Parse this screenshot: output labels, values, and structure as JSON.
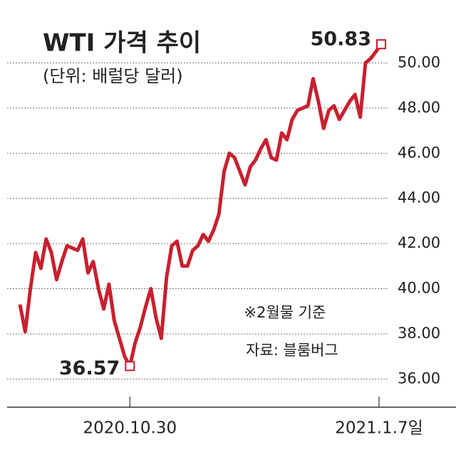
{
  "chart_data": {
    "type": "line",
    "title": "WTI 가격 추이",
    "subtitle": "(단위: 배럴당 달러)",
    "annotations": [
      "※2월물 기준",
      "자료: 블룸버그"
    ],
    "categories": [
      null,
      null,
      null,
      null,
      null,
      null,
      null,
      null,
      null,
      null,
      null,
      null,
      null,
      null,
      null,
      null,
      null,
      null,
      null,
      null,
      null,
      "2020.10.30",
      null,
      null,
      null,
      null,
      null,
      null,
      null,
      null,
      null,
      null,
      null,
      null,
      null,
      null,
      null,
      null,
      null,
      null,
      null,
      null,
      null,
      null,
      null,
      null,
      null,
      null,
      null,
      null,
      null,
      null,
      null,
      null,
      null,
      null,
      null,
      null,
      null,
      null,
      null,
      null,
      null,
      null,
      null,
      null,
      null,
      null,
      null,
      "2021.1.7일"
    ],
    "series": [
      {
        "color": "#c8202f",
        "values": [
          39.3,
          38.1,
          40.0,
          41.6,
          40.9,
          42.2,
          41.6,
          40.4,
          41.2,
          41.9,
          41.8,
          41.7,
          42.2,
          40.7,
          41.2,
          40.0,
          39.1,
          40.2,
          38.6,
          37.8,
          37.0,
          36.57,
          37.6,
          38.3,
          39.2,
          40.0,
          38.7,
          37.8,
          40.5,
          41.9,
          42.1,
          41.0,
          41.0,
          41.7,
          41.9,
          42.4,
          42.1,
          42.6,
          43.3,
          45.2,
          46.0,
          45.8,
          45.2,
          44.6,
          45.4,
          45.7,
          46.2,
          46.6,
          45.8,
          45.7,
          46.9,
          46.6,
          47.5,
          47.9,
          48.0,
          48.1,
          49.3,
          48.3,
          47.1,
          47.9,
          48.1,
          47.5,
          47.9,
          48.3,
          48.6,
          47.6,
          50.0,
          50.2,
          50.5,
          50.83
        ]
      }
    ],
    "labeled_points": [
      21,
      69
    ],
    "ylim": [
      34.75,
      52.0
    ],
    "yticks": [
      {
        "value": 36,
        "label": "36.00"
      },
      {
        "value": 38,
        "label": "38.00"
      },
      {
        "value": 40,
        "label": "40.00"
      },
      {
        "value": 42,
        "label": "42.00"
      },
      {
        "value": 44,
        "label": "44.00"
      },
      {
        "value": 46,
        "label": "46.00"
      },
      {
        "value": 48,
        "label": "48.00"
      },
      {
        "value": 50,
        "label": "50.00"
      }
    ],
    "grid": true
  }
}
